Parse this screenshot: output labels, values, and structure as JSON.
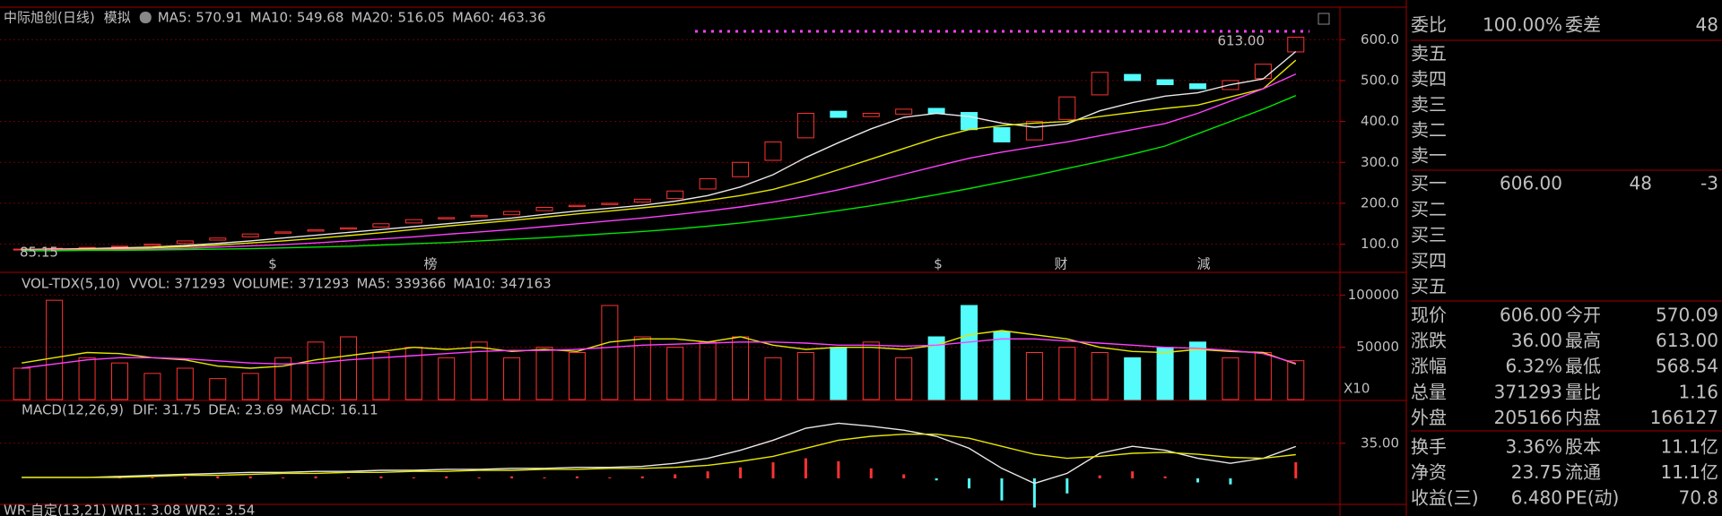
{
  "price_chart": {
    "name": "中际旭创(日线)",
    "mode": "模拟",
    "indicators": [
      "MA5: 570.91",
      "MA10: 549.68",
      "MA20: 516.05",
      "MA60: 463.36"
    ],
    "indicator_colors": [
      "#e8e8e8",
      "#e6e600",
      "#ff40ff",
      "#00e600"
    ],
    "ylim": [
      40,
      675
    ],
    "yticks": [
      {
        "value": 100,
        "label": "100.0"
      },
      {
        "value": 200,
        "label": "200.0"
      },
      {
        "value": 300,
        "label": "300.0"
      },
      {
        "value": 400,
        "label": "400.0"
      },
      {
        "value": 500,
        "label": "500.0"
      },
      {
        "value": 600,
        "label": "600.0"
      }
    ],
    "high_label": "613.00",
    "low_label": "85.15",
    "events": [
      "$",
      "榜",
      "$",
      "财",
      "減"
    ],
    "up_color": "#ff3232",
    "down_color": "#54fcfc",
    "open": [
      86,
      88,
      91,
      93,
      97,
      102,
      110,
      118,
      127,
      132,
      137,
      142,
      152,
      162,
      167,
      172,
      182,
      192,
      197,
      203,
      212,
      235,
      265,
      305,
      360,
      425,
      412,
      418,
      432,
      422,
      385,
      355,
      405,
      465,
      515,
      502,
      492,
      478,
      505,
      570
    ],
    "close": [
      88,
      90,
      92,
      95,
      100,
      108,
      115,
      125,
      130,
      135,
      140,
      150,
      160,
      165,
      170,
      180,
      190,
      195,
      200,
      210,
      230,
      260,
      300,
      350,
      420,
      410,
      420,
      430,
      420,
      380,
      350,
      400,
      460,
      520,
      500,
      490,
      480,
      500,
      540,
      606
    ],
    "ma": [
      [
        87,
        88,
        89,
        91,
        93,
        97,
        102,
        108,
        115,
        122,
        129,
        136,
        143,
        150,
        157,
        164,
        173,
        181,
        188,
        195,
        205,
        219,
        240,
        270,
        312,
        348,
        382,
        410,
        420,
        412,
        396,
        386,
        394,
        426,
        446,
        462,
        470,
        490,
        504,
        570.91
      ],
      [
        86,
        87,
        88,
        89,
        91,
        94,
        98,
        103,
        108,
        114,
        121,
        128,
        136,
        144,
        151,
        158,
        166,
        174,
        181,
        189,
        197,
        207,
        219,
        234,
        256,
        282,
        308,
        334,
        360,
        380,
        390,
        396,
        400,
        412,
        422,
        432,
        440,
        460,
        480,
        549.68
      ],
      [
        85,
        86,
        86,
        87,
        88,
        90,
        93,
        96,
        99,
        103,
        108,
        113,
        118,
        124,
        130,
        136,
        143,
        150,
        157,
        164,
        172,
        181,
        191,
        203,
        217,
        233,
        251,
        271,
        291,
        310,
        325,
        338,
        350,
        365,
        380,
        395,
        420,
        450,
        480,
        516.05
      ],
      [
        84,
        84,
        85,
        85,
        86,
        87,
        88,
        89,
        91,
        93,
        95,
        98,
        101,
        104,
        108,
        112,
        116,
        121,
        126,
        131,
        137,
        144,
        152,
        161,
        171,
        182,
        194,
        207,
        221,
        236,
        252,
        268,
        285,
        302,
        320,
        340,
        370,
        400,
        430,
        463.36
      ]
    ]
  },
  "volume_chart": {
    "name": "VOL-TDX(5,10)",
    "indicators": [
      "VVOL: 371293",
      "VOLUME: 371293",
      "MA5: 339366",
      "MA10: 347163"
    ],
    "indicator_colors": [
      "#e8e8e8",
      "#e6e600",
      "#e6e600",
      "#ff40ff"
    ],
    "multiplier": "X10",
    "ylim": [
      0,
      120000
    ],
    "yticks": [
      50000,
      100000
    ],
    "values": [
      30000,
      95000,
      40000,
      35000,
      25000,
      30000,
      20000,
      25000,
      40000,
      55000,
      60000,
      45000,
      50000,
      40000,
      55000,
      40000,
      50000,
      45000,
      90000,
      60000,
      50000,
      55000,
      60000,
      40000,
      45000,
      50000,
      55000,
      40000,
      60000,
      90000,
      65000,
      45000,
      50000,
      45000,
      40000,
      50000,
      55000,
      40000,
      45000,
      37129.3
    ],
    "ma5": [
      35000,
      40000,
      45000,
      44000,
      40000,
      38000,
      32000,
      30000,
      32000,
      38000,
      42000,
      46000,
      50000,
      48000,
      50000,
      46000,
      48000,
      46000,
      55000,
      58000,
      58000,
      55000,
      60000,
      52000,
      48000,
      50000,
      50000,
      48000,
      52000,
      62000,
      66000,
      62000,
      58000,
      50000,
      46000,
      45000,
      48000,
      46000,
      45000,
      33936.6
    ],
    "ma10": [
      30000,
      34000,
      38000,
      40000,
      40000,
      39000,
      37000,
      35000,
      34000,
      35000,
      38000,
      40000,
      42000,
      44000,
      46000,
      47000,
      47000,
      48000,
      50000,
      52000,
      53000,
      54000,
      55000,
      55000,
      54000,
      52000,
      52000,
      51000,
      52000,
      55000,
      58000,
      58000,
      56000,
      54000,
      52000,
      50000,
      49000,
      47000,
      44000,
      34716.3
    ]
  },
  "macd_chart": {
    "name": "MACD(12,26,9)",
    "indicators": [
      "DIF: 31.75",
      "DEA: 23.69",
      "MACD: 16.11"
    ],
    "indicator_colors": [
      "#e8e8e8",
      "#e6e600",
      "#ff40ff"
    ],
    "ylim": [
      -25,
      75
    ],
    "yticks": [
      {
        "value": 35,
        "label": "35.00"
      }
    ],
    "dif": [
      1,
      1,
      1,
      2,
      3,
      4,
      5,
      6,
      6,
      7,
      7,
      8,
      8,
      9,
      9,
      10,
      10,
      11,
      11,
      12,
      15,
      20,
      28,
      38,
      50,
      55,
      52,
      48,
      42,
      30,
      10,
      -5,
      5,
      25,
      32,
      28,
      20,
      15,
      20,
      31.75
    ],
    "dea": [
      1,
      1,
      1,
      1,
      2,
      3,
      3,
      4,
      5,
      5,
      6,
      6,
      7,
      7,
      8,
      8,
      9,
      9,
      10,
      10,
      11,
      13,
      17,
      22,
      30,
      38,
      42,
      44,
      44,
      40,
      32,
      24,
      20,
      22,
      25,
      26,
      24,
      21,
      20,
      23.69
    ],
    "macd": [
      0,
      0,
      0,
      1,
      1,
      1,
      2,
      2,
      1,
      2,
      1,
      2,
      1,
      2,
      1,
      2,
      1,
      2,
      1,
      2,
      4,
      7,
      11,
      16,
      20,
      17,
      10,
      4,
      -2,
      -10,
      -22,
      -29,
      -15,
      3,
      7,
      2,
      -4,
      -6,
      0,
      16.11
    ]
  },
  "footer": "WR-自定(13,21)  WR1: 3.08  WR2: 3.54",
  "quote_panel": {
    "summary": [
      "委比",
      "100.00%",
      "委差",
      "48"
    ],
    "asks": [
      "卖五",
      "卖四",
      "卖三",
      "卖二",
      "卖一"
    ],
    "bids": [
      [
        "买一",
        "606.00",
        "48",
        "-3"
      ],
      [
        "买二"
      ],
      [
        "买三"
      ],
      [
        "买四"
      ],
      [
        "买五"
      ]
    ],
    "stats": [
      {
        "cells": [
          "现价",
          "606.00",
          "今开",
          "570.09"
        ],
        "colors": [
          "#ff3232",
          "#ff3232"
        ]
      },
      {
        "cells": [
          "涨跌",
          "36.00",
          "最高",
          "613.00"
        ],
        "colors": [
          "#ff3232",
          "#ff3232"
        ]
      },
      {
        "cells": [
          "涨幅",
          "6.32%",
          "最低",
          "568.54"
        ],
        "colors": [
          "#ff3232",
          "#00e600"
        ]
      },
      {
        "cells": [
          "总量",
          "371293",
          "量比",
          "1.16"
        ],
        "colors": [
          "#e6e600",
          "#ff3232"
        ]
      },
      {
        "cells": [
          "外盘",
          "205166",
          "内盘",
          "166127"
        ],
        "colors": [
          "#ff3232",
          "#00e600"
        ]
      },
      {
        "cells": [
          "换手",
          "3.36%",
          "股本",
          "11.1亿"
        ],
        "colors": [
          "#e8e8e8",
          "#e8e8e8"
        ]
      },
      {
        "cells": [
          "净资",
          "23.75",
          "流通",
          "11.1亿"
        ],
        "colors": [
          "#e8e8e8",
          "#e8e8e8"
        ]
      },
      {
        "cells": [
          "收益(三)",
          "6.480",
          "PE(动)",
          "70.8"
        ],
        "colors": [
          "#e8e8e8",
          "#e8e8e8"
        ]
      }
    ]
  }
}
